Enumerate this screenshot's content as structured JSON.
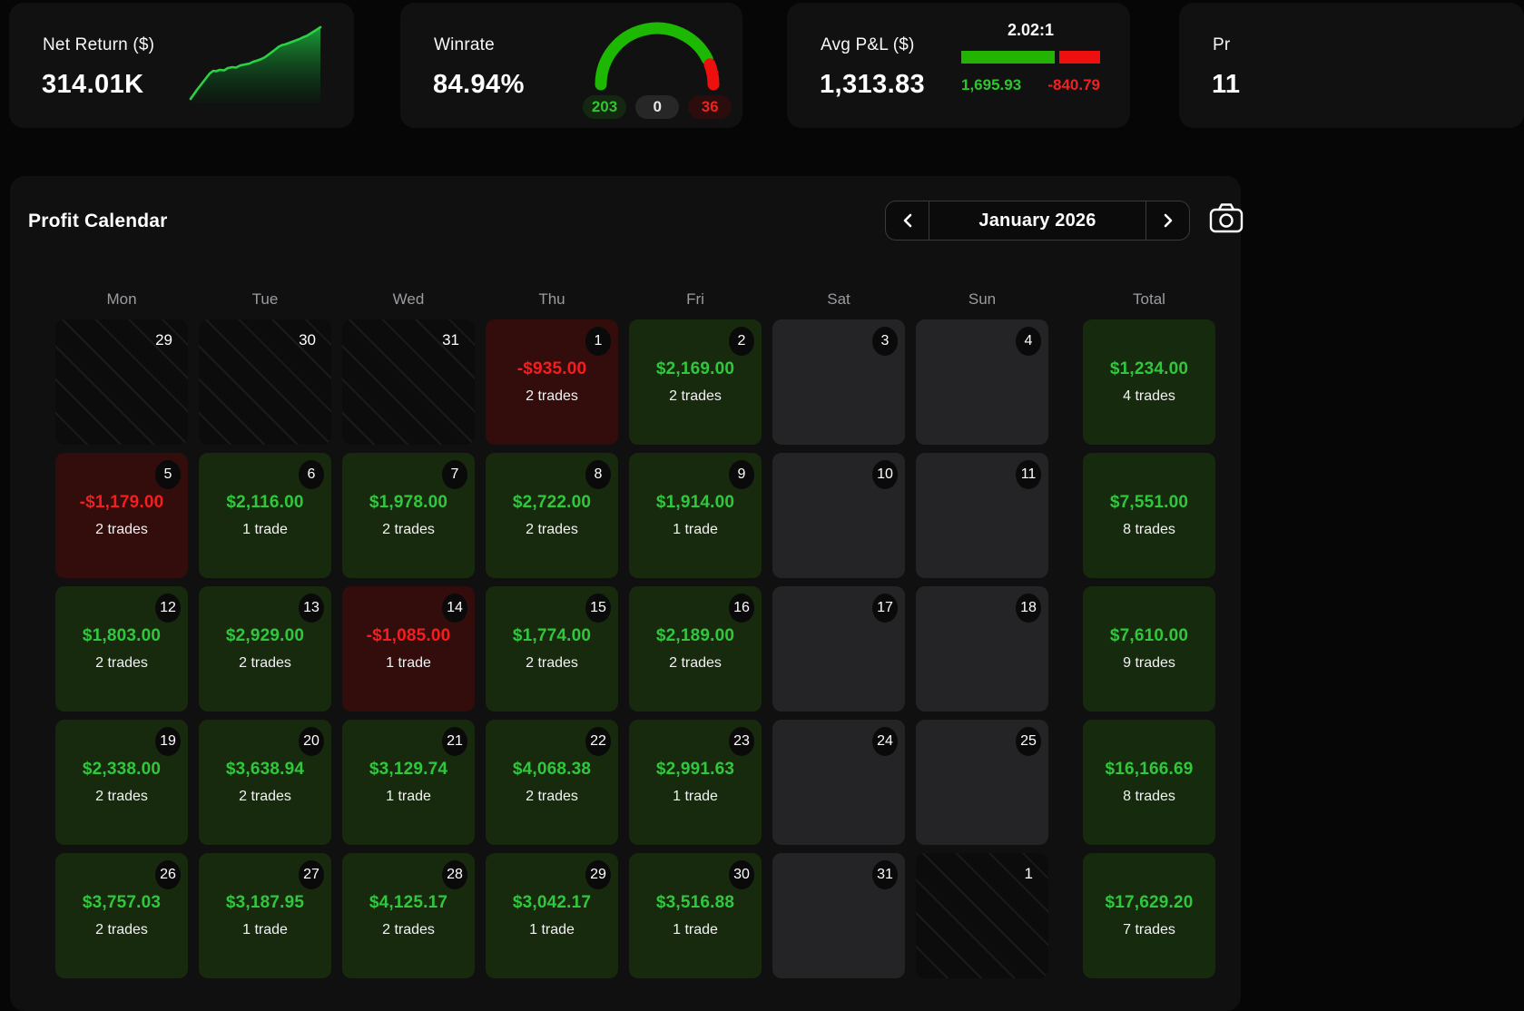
{
  "stat_cards": [
    {
      "label": "Net Return ($)",
      "value": "314.01K"
    },
    {
      "label": "Winrate",
      "value": "84.94%",
      "pills": {
        "wins": "203",
        "breakeven": "0",
        "losses": "36"
      }
    },
    {
      "label": "Avg P&L ($)",
      "value": "1,313.83",
      "ratio_label": "2.02:1",
      "avg_win": "1,695.93",
      "avg_loss": "-840.79"
    },
    {
      "label": "Pr",
      "value": "11"
    }
  ],
  "calendar": {
    "title": "Profit Calendar",
    "month_label": "January 2026",
    "day_headers": [
      "Mon",
      "Tue",
      "Wed",
      "Thu",
      "Fri",
      "Sat",
      "Sun",
      "Total"
    ],
    "weeks": [
      {
        "days": [
          {
            "day": "29",
            "type": "prev"
          },
          {
            "day": "30",
            "type": "prev"
          },
          {
            "day": "31",
            "type": "prev"
          },
          {
            "day": "1",
            "type": "loss",
            "value": "-$935.00",
            "trades": "2 trades"
          },
          {
            "day": "2",
            "type": "win",
            "value": "$2,169.00",
            "trades": "2 trades"
          },
          {
            "day": "3",
            "type": "off"
          },
          {
            "day": "4",
            "type": "off"
          }
        ],
        "total": {
          "value": "$1,234.00",
          "trades": "4 trades"
        }
      },
      {
        "days": [
          {
            "day": "5",
            "type": "loss",
            "value": "-$1,179.00",
            "trades": "2 trades"
          },
          {
            "day": "6",
            "type": "win",
            "value": "$2,116.00",
            "trades": "1 trade"
          },
          {
            "day": "7",
            "type": "win",
            "value": "$1,978.00",
            "trades": "2 trades"
          },
          {
            "day": "8",
            "type": "win",
            "value": "$2,722.00",
            "trades": "2 trades"
          },
          {
            "day": "9",
            "type": "win",
            "value": "$1,914.00",
            "trades": "1 trade"
          },
          {
            "day": "10",
            "type": "off"
          },
          {
            "day": "11",
            "type": "off"
          }
        ],
        "total": {
          "value": "$7,551.00",
          "trades": "8 trades"
        }
      },
      {
        "days": [
          {
            "day": "12",
            "type": "win",
            "value": "$1,803.00",
            "trades": "2 trades"
          },
          {
            "day": "13",
            "type": "win",
            "value": "$2,929.00",
            "trades": "2 trades"
          },
          {
            "day": "14",
            "type": "loss",
            "value": "-$1,085.00",
            "trades": "1 trade"
          },
          {
            "day": "15",
            "type": "win",
            "value": "$1,774.00",
            "trades": "2 trades"
          },
          {
            "day": "16",
            "type": "win",
            "value": "$2,189.00",
            "trades": "2 trades"
          },
          {
            "day": "17",
            "type": "off"
          },
          {
            "day": "18",
            "type": "off"
          }
        ],
        "total": {
          "value": "$7,610.00",
          "trades": "9 trades"
        }
      },
      {
        "days": [
          {
            "day": "19",
            "type": "win",
            "value": "$2,338.00",
            "trades": "2 trades"
          },
          {
            "day": "20",
            "type": "win",
            "value": "$3,638.94",
            "trades": "2 trades"
          },
          {
            "day": "21",
            "type": "win",
            "value": "$3,129.74",
            "trades": "1 trade"
          },
          {
            "day": "22",
            "type": "win",
            "value": "$4,068.38",
            "trades": "2 trades"
          },
          {
            "day": "23",
            "type": "win",
            "value": "$2,991.63",
            "trades": "1 trade"
          },
          {
            "day": "24",
            "type": "off"
          },
          {
            "day": "25",
            "type": "off"
          }
        ],
        "total": {
          "value": "$16,166.69",
          "trades": "8 trades"
        }
      },
      {
        "days": [
          {
            "day": "26",
            "type": "win",
            "value": "$3,757.03",
            "trades": "2 trades"
          },
          {
            "day": "27",
            "type": "win",
            "value": "$3,187.95",
            "trades": "1 trade"
          },
          {
            "day": "28",
            "type": "win",
            "value": "$4,125.17",
            "trades": "2 trades"
          },
          {
            "day": "29",
            "type": "win",
            "value": "$3,042.17",
            "trades": "1 trade"
          },
          {
            "day": "30",
            "type": "win",
            "value": "$3,516.88",
            "trades": "1 trade"
          },
          {
            "day": "31",
            "type": "off"
          },
          {
            "day": "1",
            "type": "next"
          }
        ],
        "total": {
          "value": "$17,629.20",
          "trades": "7 trades"
        }
      }
    ]
  },
  "colors": {
    "win_text": "#31c73d",
    "loss_text": "#f51d1d",
    "gauge_green": "#1db902",
    "gauge_red": "#ee0f0f",
    "win_cell_bg": "#172a0e",
    "loss_cell_bg": "#330c0c"
  }
}
